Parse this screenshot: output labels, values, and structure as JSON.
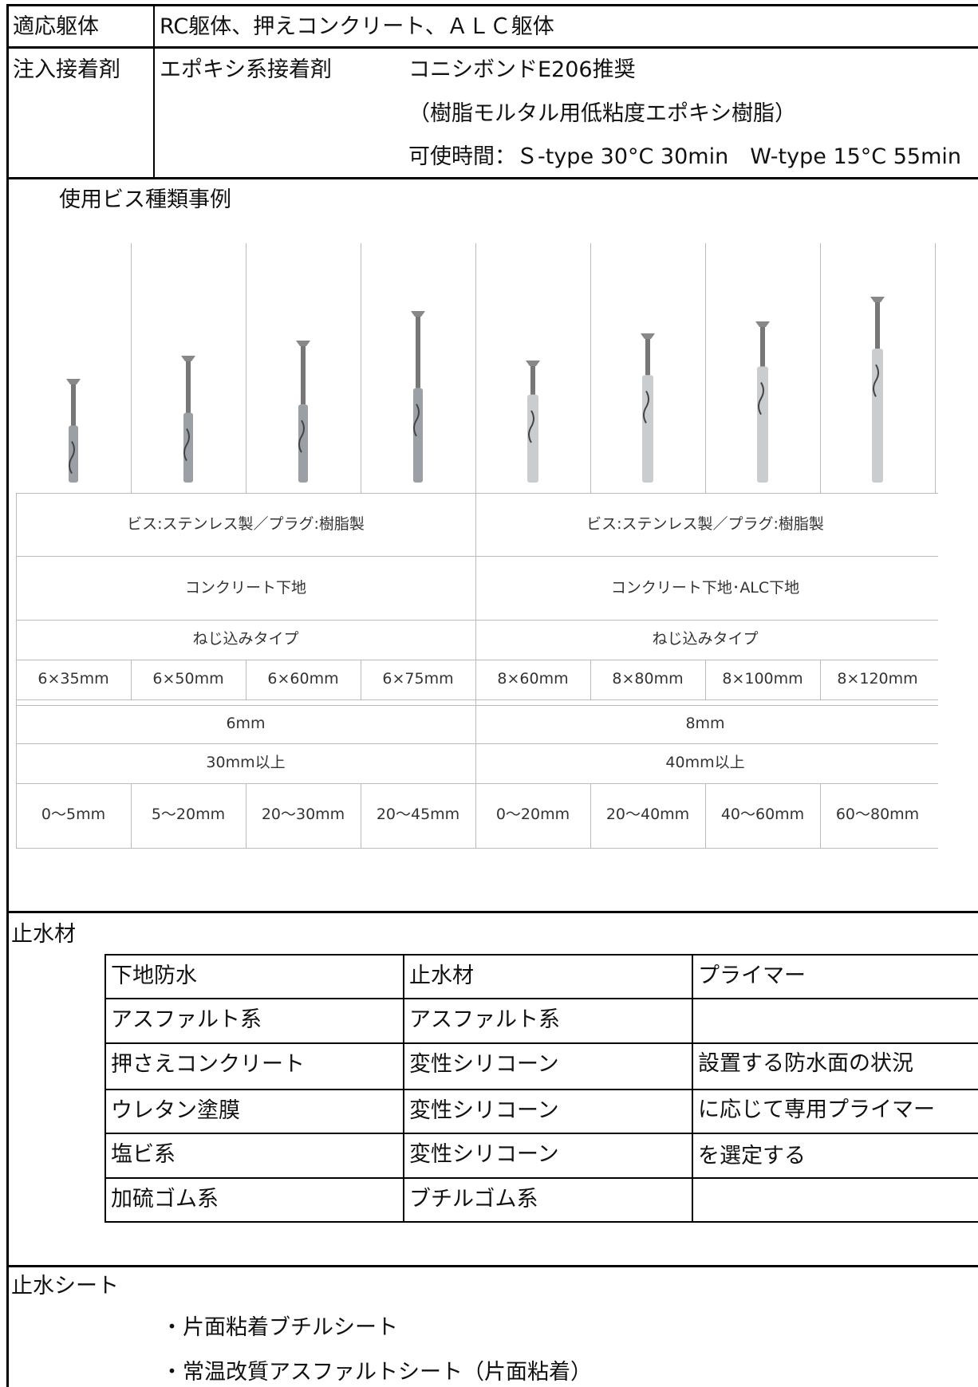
{
  "structure": {
    "label": "適応躯体",
    "value": "RC躯体、押えコンクリート、ＡＬＣ躯体"
  },
  "adhesive": {
    "label": "注入接着剤",
    "type": "エポキシ系接着剤",
    "product": "コニシボンドE206推奨",
    "note": "（樹脂モルタル用低粘度エポキシ樹脂）",
    "pot_life": "可使時間：Ｓ-type 30°C 30min　W-type 15°C 55min"
  },
  "screws": {
    "title": "使用ビス種類事例",
    "material": [
      "ビス:ステンレス製／プラグ:樹脂製",
      "ビス:ステンレス製／プラグ:樹脂製"
    ],
    "base": [
      "コンクリート下地",
      "コンクリート下地･ALC下地"
    ],
    "install": [
      "ねじ込みタイプ",
      "ねじ込みタイプ"
    ],
    "sizes": [
      "6×35mm",
      "6×50mm",
      "6×60mm",
      "6×75mm",
      "8×60mm",
      "8×80mm",
      "8×100mm",
      "8×120mm"
    ],
    "diameter": [
      "6mm",
      "8mm"
    ],
    "embed": [
      "30mm以上",
      "40mm以上"
    ],
    "ranges": [
      "0〜5mm",
      "5〜20mm",
      "20〜30mm",
      "20〜45mm",
      "0〜20mm",
      "20〜40mm",
      "40〜60mm",
      "60〜80mm"
    ]
  },
  "sealant": {
    "title": "止水材",
    "header": [
      "下地防水",
      "止水材",
      "プライマー"
    ],
    "rows": [
      [
        "アスファルト系",
        "アスファルト系"
      ],
      [
        "押さえコンクリート",
        "変性シリコーン"
      ],
      [
        "ウレタン塗膜",
        "変性シリコーン"
      ],
      [
        "塩ビ系",
        "変性シリコーン"
      ],
      [
        "加硫ゴム系",
        "ブチルゴム系"
      ]
    ],
    "primer": [
      "設置する防水面の状況",
      "に応じて専用プライマー",
      "を選定する"
    ]
  },
  "sheet": {
    "title": "止水シート",
    "items": [
      "・片面粘着ブチルシート",
      "・常温改質アスファルトシート（片面粘着）"
    ]
  }
}
